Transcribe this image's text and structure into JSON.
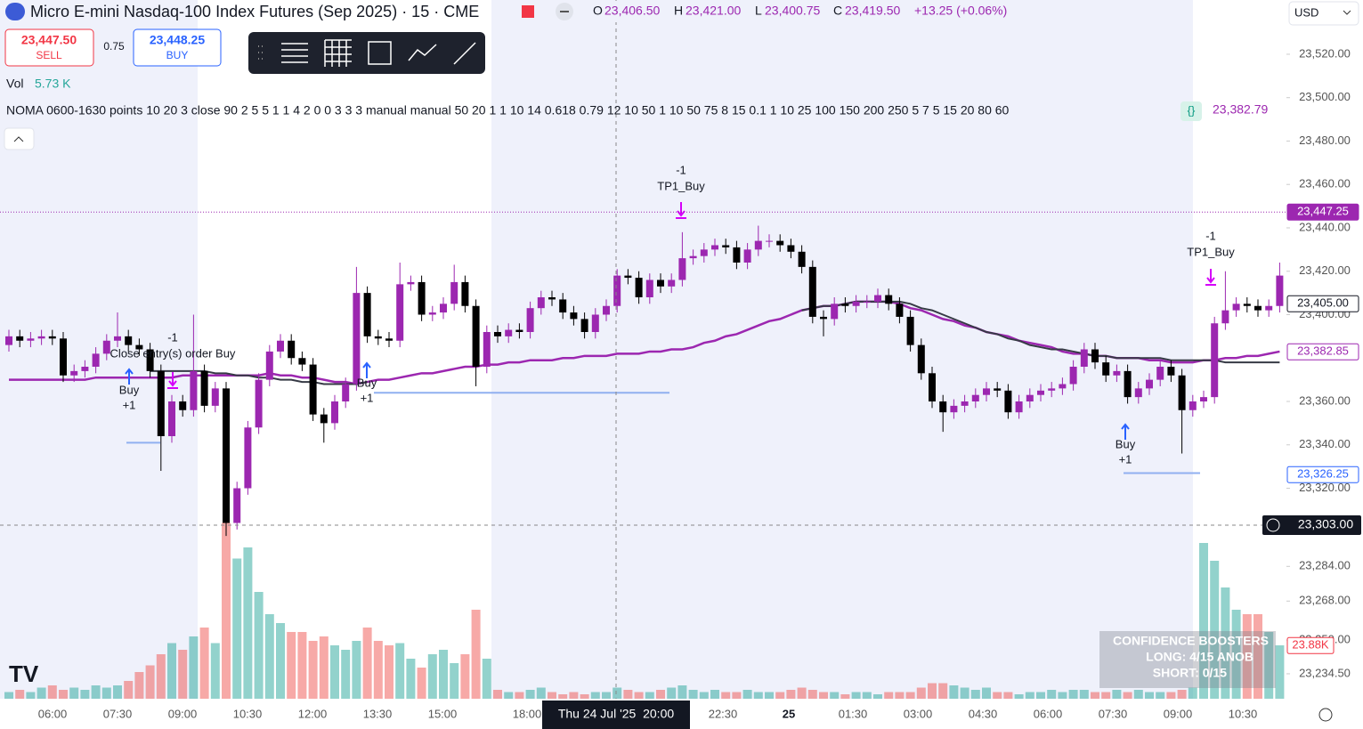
{
  "header": {
    "title": "Micro E-mini Nasdaq-100 Index Futures (Sep 2025) · 15 · CME",
    "o_label": "O",
    "o": "23,406.50",
    "h_label": "H",
    "h": "23,421.00",
    "l_label": "L",
    "l": "23,400.75",
    "c_label": "C",
    "c": "23,419.50",
    "change": "+13.25 (+0.06%)",
    "currency": "USD"
  },
  "trade": {
    "sell_price": "23,447.50",
    "sell": "SELL",
    "spread": "0.75",
    "buy_price": "23,448.25",
    "buy": "BUY"
  },
  "legend": {
    "vol_label": "Vol",
    "vol": "5.73 K",
    "indicator": "NOMA 0600-1630 points 10 20 3 close 90 2 5 5 1 1 4 2 0 0 3 3 3 manual manual 50 20 1 1 10 14 0.618 0.79 12 10 50 1 10 50 75 8 15 0.1 1 10 25 100 150 200 250 5 7 5 15 20 80 60",
    "indicator_value": "23,382.79"
  },
  "booster": {
    "title": "CONFIDENCE BOOSTERS",
    "long": "LONG:  4/15  ANOB",
    "short": "SHORT: 0/15"
  },
  "chart_data": {
    "type": "candlestick",
    "up_color": "#9c27b0",
    "down_color": "#000000",
    "volume_up_color": "rgba(38,166,154,0.5)",
    "volume_down_color": "rgba(239,83,80,0.5)",
    "x_labels": [
      "06:00",
      "07:30",
      "09:00",
      "10:30",
      "12:00",
      "13:30",
      "15:00",
      "18:00",
      "22:30",
      "25",
      "01:30",
      "03:00",
      "04:30",
      "06:00",
      "07:30",
      "09:00",
      "10:30"
    ],
    "crosshair_x_label": "Thu 24 Jul '25  20:00",
    "ylim": [
      23223,
      23545
    ],
    "yticks": [
      {
        "value": 23520,
        "label": "23,520.00"
      },
      {
        "value": 23500,
        "label": "23,500.00"
      },
      {
        "value": 23480,
        "label": "23,480.00"
      },
      {
        "value": 23460,
        "label": "23,460.00"
      },
      {
        "value": 23440,
        "label": "23,440.00"
      },
      {
        "value": 23420,
        "label": "23,420.00"
      },
      {
        "value": 23400,
        "label": "23,400.00"
      },
      {
        "value": 23360,
        "label": "23,360.00"
      },
      {
        "value": 23340,
        "label": "23,340.00"
      },
      {
        "value": 23320,
        "label": "23,320.00"
      },
      {
        "value": 23284,
        "label": "23,284.00"
      },
      {
        "value": 23268,
        "label": "23,268.00"
      },
      {
        "value": 23250,
        "label": "23,250.00"
      },
      {
        "value": 23234.5,
        "label": "23,234.50"
      }
    ],
    "price_labels": [
      {
        "value": 23447.25,
        "label": "23,447.25",
        "color": "#9c27b0"
      },
      {
        "value": 23405,
        "label": "23,405.00",
        "color": "#131722"
      },
      {
        "value": 23382.85,
        "label": "23,382.85",
        "color": "#9c27b0"
      },
      {
        "value": 23326.25,
        "label": "23,326.25",
        "color": "#2962ff"
      }
    ],
    "crosshair_price": {
      "value": 23303,
      "label": "23,303.00"
    },
    "open": [
      23386,
      23390,
      23388,
      23389,
      23390,
      23389,
      23372,
      23374,
      23376,
      23382,
      23388,
      23390,
      23386,
      23384,
      23374,
      23344,
      23360,
      23356,
      23374,
      23358,
      23366,
      23304,
      23320,
      23348,
      23370,
      23383,
      23388,
      23380,
      23377,
      23354,
      23350,
      23360,
      23368,
      23410,
      23390,
      23389,
      23388,
      23414,
      23415,
      23400,
      23401,
      23405,
      23415,
      23404,
      23376,
      23392,
      23390,
      23393,
      23392,
      23403,
      23408,
      23407,
      23401,
      23398,
      23392,
      23400,
      23404,
      23418,
      23417,
      23408,
      23416,
      23413,
      23416,
      23426,
      23427,
      23430,
      23432,
      23431,
      23424,
      23430,
      23434,
      23434,
      23432,
      23429,
      23422,
      23399,
      23398,
      23405,
      23404,
      23406,
      23406,
      23409,
      23405,
      23399,
      23386,
      23373,
      23360,
      23355,
      23358,
      23360,
      23363,
      23366,
      23365,
      23355,
      23360,
      23363,
      23365,
      23366,
      23368,
      23376,
      23384,
      23378,
      23372,
      23374,
      23362,
      23366,
      23370,
      23376,
      23372,
      23356,
      23360,
      23362,
      23396,
      23402,
      23405,
      23404,
      23402,
      23404
    ],
    "high": [
      23393,
      23393,
      23392,
      23393,
      23393,
      23392,
      23377,
      23379,
      23385,
      23391,
      23401,
      23393,
      23389,
      23387,
      23377,
      23363,
      23363,
      23400,
      23377,
      23369,
      23369,
      23323,
      23351,
      23373,
      23386,
      23391,
      23391,
      23383,
      23380,
      23357,
      23363,
      23371,
      23422,
      23413,
      23393,
      23392,
      23424,
      23418,
      23418,
      23404,
      23408,
      23423,
      23418,
      23407,
      23395,
      23395,
      23396,
      23396,
      23406,
      23411,
      23411,
      23410,
      23404,
      23401,
      23403,
      23407,
      23421,
      23421,
      23420,
      23419,
      23419,
      23419,
      23438,
      23430,
      23433,
      23435,
      23435,
      23434,
      23433,
      23441,
      23437,
      23437,
      23435,
      23432,
      23425,
      23402,
      23408,
      23408,
      23409,
      23409,
      23412,
      23412,
      23408,
      23402,
      23389,
      23376,
      23363,
      23361,
      23363,
      23366,
      23369,
      23369,
      23368,
      23363,
      23366,
      23368,
      23369,
      23371,
      23379,
      23387,
      23387,
      23381,
      23377,
      23377,
      23369,
      23373,
      23379,
      23379,
      23375,
      23363,
      23365,
      23399,
      23420,
      23408,
      23408,
      23407,
      23407,
      23424
    ],
    "low": [
      23383,
      23385,
      23385,
      23386,
      23386,
      23369,
      23369,
      23371,
      23373,
      23379,
      23385,
      23383,
      23381,
      23371,
      23328,
      23341,
      23353,
      23353,
      23355,
      23355,
      23298,
      23301,
      23317,
      23345,
      23367,
      23380,
      23377,
      23374,
      23351,
      23341,
      23347,
      23357,
      23365,
      23387,
      23386,
      23385,
      23385,
      23411,
      23397,
      23397,
      23398,
      23402,
      23401,
      23367,
      23373,
      23387,
      23387,
      23389,
      23389,
      23400,
      23404,
      23398,
      23395,
      23389,
      23389,
      23397,
      23401,
      23414,
      23405,
      23405,
      23410,
      23410,
      23413,
      23423,
      23424,
      23427,
      23428,
      23421,
      23421,
      23427,
      23431,
      23429,
      23426,
      23419,
      23396,
      23390,
      23395,
      23401,
      23401,
      23403,
      23403,
      23402,
      23396,
      23383,
      23370,
      23357,
      23346,
      23352,
      23355,
      23357,
      23360,
      23362,
      23352,
      23352,
      23357,
      23360,
      23362,
      23363,
      23365,
      23373,
      23375,
      23369,
      23369,
      23359,
      23359,
      23363,
      23367,
      23369,
      23336,
      23353,
      23357,
      23359,
      23393,
      23399,
      23401,
      23399,
      23399,
      23401
    ],
    "close": [
      23390,
      23388,
      23389,
      23390,
      23389,
      23372,
      23374,
      23376,
      23382,
      23388,
      23390,
      23386,
      23384,
      23374,
      23344,
      23360,
      23356,
      23374,
      23358,
      23366,
      23304,
      23320,
      23348,
      23370,
      23383,
      23388,
      23380,
      23377,
      23354,
      23350,
      23360,
      23368,
      23410,
      23390,
      23389,
      23388,
      23414,
      23415,
      23400,
      23401,
      23405,
      23415,
      23404,
      23376,
      23392,
      23390,
      23393,
      23392,
      23403,
      23408,
      23407,
      23401,
      23398,
      23392,
      23400,
      23404,
      23418,
      23417,
      23408,
      23416,
      23413,
      23416,
      23426,
      23427,
      23430,
      23432,
      23431,
      23424,
      23430,
      23434,
      23434,
      23432,
      23429,
      23422,
      23399,
      23398,
      23405,
      23404,
      23406,
      23406,
      23409,
      23405,
      23399,
      23386,
      23373,
      23360,
      23355,
      23358,
      23360,
      23363,
      23366,
      23365,
      23355,
      23360,
      23363,
      23365,
      23366,
      23368,
      23376,
      23384,
      23378,
      23372,
      23374,
      23362,
      23366,
      23370,
      23376,
      23372,
      23356,
      23360,
      23362,
      23396,
      23402,
      23405,
      23404,
      23402,
      23404,
      23418
    ],
    "volume": [
      3,
      4,
      3,
      5,
      6,
      4,
      5,
      4,
      6,
      5,
      6,
      8,
      12,
      15,
      20,
      25,
      22,
      28,
      32,
      25,
      79,
      63,
      68,
      48,
      38,
      34,
      30,
      30,
      26,
      28,
      24,
      22,
      26,
      32,
      26,
      24,
      25,
      18,
      14,
      20,
      22,
      16,
      20,
      40,
      18,
      4,
      3,
      3,
      4,
      5,
      3,
      2,
      3,
      2,
      3,
      3,
      5,
      4,
      3,
      3,
      4,
      5,
      6,
      4,
      3,
      4,
      3,
      3,
      4,
      3,
      3,
      3,
      4,
      5,
      4,
      3,
      3,
      2,
      3,
      3,
      2,
      3,
      3,
      3,
      5,
      7,
      7,
      6,
      5,
      4,
      5,
      3,
      3,
      2,
      3,
      3,
      4,
      3,
      4,
      4,
      3,
      3,
      4,
      3,
      4,
      3,
      3,
      3,
      4,
      5,
      70,
      62,
      50,
      40,
      38,
      38,
      30,
      24
    ],
    "vlim": [
      0,
      90
    ],
    "volume_label": {
      "value": 23.88,
      "label": "23.88K"
    },
    "lines": [
      {
        "color": "#9c27b0",
        "values": [
          23370,
          23370,
          23370,
          23370,
          23370,
          23370,
          23370,
          23370,
          23371,
          23371,
          23371,
          23371,
          23371,
          23371,
          23371,
          23371,
          23372,
          23372,
          23372,
          23372,
          23372,
          23372,
          23372,
          23372,
          23373,
          23372,
          23372,
          23371,
          23371,
          23370,
          23369,
          23369,
          23368,
          23369,
          23370,
          23370,
          23371,
          23372,
          23373,
          23373,
          23374,
          23375,
          23376,
          23376,
          23377,
          23377,
          23378,
          23378,
          23379,
          23379,
          23379,
          23380,
          23380,
          23381,
          23381,
          23381,
          23382,
          23382,
          23382,
          23383,
          23383,
          23384,
          23384,
          23385,
          23387,
          23388,
          23390,
          23391,
          23393,
          23395,
          23397,
          23398,
          23400,
          23402,
          23403,
          23404,
          23404,
          23405,
          23406,
          23406,
          23406,
          23406,
          23405,
          23403,
          23402,
          23400,
          23398,
          23397,
          23395,
          23394,
          23392,
          23391,
          23390,
          23388,
          23387,
          23386,
          23385,
          23383,
          23382,
          23382,
          23381,
          23381,
          23380,
          23380,
          23380,
          23379,
          23379,
          23378,
          23378,
          23378,
          23379,
          23379,
          23380,
          23380,
          23381,
          23381,
          23382,
          23383
        ]
      },
      {
        "color": "#363a45",
        "values": [
          null,
          null,
          null,
          null,
          null,
          null,
          null,
          null,
          null,
          null,
          null,
          null,
          null,
          23374,
          23374,
          23374,
          23374,
          23374,
          23374,
          23373,
          23373,
          23372,
          23372,
          23371,
          23371,
          23370,
          23370,
          23369,
          23369,
          23368,
          23368,
          23368,
          23368,
          23369,
          null,
          null,
          null,
          null,
          null,
          null,
          null,
          null,
          null,
          null,
          null,
          null,
          null,
          null,
          null,
          null,
          null,
          null,
          null,
          null,
          null,
          null,
          null,
          null,
          null,
          null,
          null,
          null,
          null,
          null,
          null,
          null,
          null,
          null,
          null,
          null,
          null,
          null,
          null,
          23402,
          23403,
          23404,
          23404,
          23405,
          23406,
          23406,
          23406,
          23406,
          23406,
          23405,
          23403,
          23402,
          23400,
          23398,
          23396,
          23394,
          23392,
          23391,
          23389,
          23388,
          23386,
          23385,
          23384,
          23384,
          23383,
          23382,
          23381,
          23381,
          23380,
          23380,
          23380,
          23380,
          23380,
          23379,
          23379,
          23379,
          23379,
          23379,
          23378,
          23378,
          23378,
          23378,
          23378,
          23378
        ]
      }
    ],
    "levels": [
      23341,
      23364,
      23327
    ],
    "annotations": [
      "-1",
      "Close entry(s) order Buy",
      "Buy",
      "+1",
      "Buy",
      "+1",
      "-1",
      "TP1_Buy",
      "Buy",
      "+1",
      "-1",
      "TP1_Buy"
    ]
  }
}
